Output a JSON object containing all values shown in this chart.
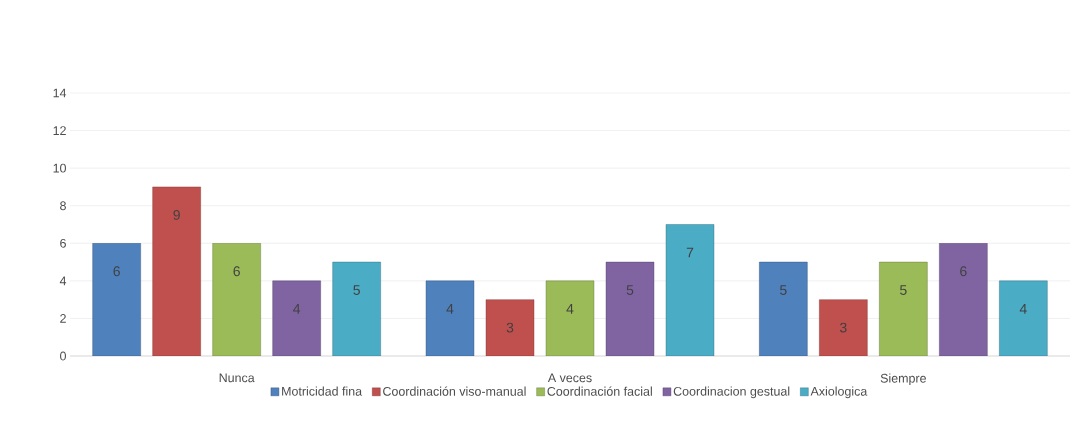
{
  "chart_data": {
    "type": "bar",
    "categories": [
      "Nunca",
      "A veces",
      "Siempre"
    ],
    "series": [
      {
        "name": "Motricidad fina",
        "color": "#4f81bd",
        "values": [
          6,
          4,
          5
        ]
      },
      {
        "name": "Coordinación viso-manual",
        "color": "#c0504d",
        "values": [
          9,
          3,
          3
        ]
      },
      {
        "name": "Coordinación facial",
        "color": "#9bbb59",
        "values": [
          6,
          4,
          5
        ]
      },
      {
        "name": "Coordinacion gestual",
        "color": "#8064a2",
        "values": [
          4,
          5,
          6
        ]
      },
      {
        "name": "Axiologica",
        "color": "#4bacc6",
        "values": [
          5,
          7,
          4
        ]
      }
    ],
    "ylim": [
      0,
      14
    ],
    "yticks": [
      0,
      2,
      4,
      6,
      8,
      10,
      12,
      14
    ],
    "grid": "y",
    "legend": "bottom",
    "data_labels": true
  }
}
